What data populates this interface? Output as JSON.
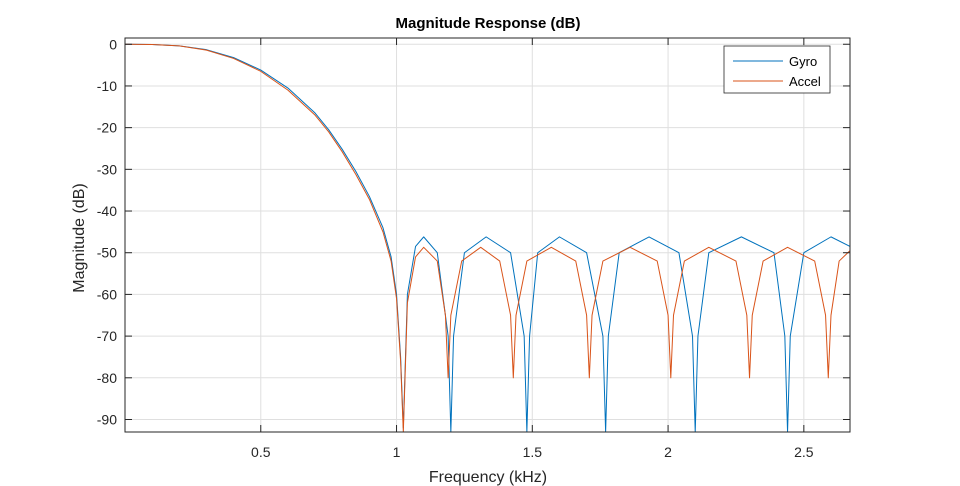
{
  "chart_data": {
    "type": "line",
    "title": "Magnitude Response (dB)",
    "xlabel": "Frequency (kHz)",
    "ylabel": "Magnitude (dB)",
    "xlim": [
      0,
      2.67
    ],
    "ylim": [
      -93,
      1.5
    ],
    "xticks": [
      0.5,
      1,
      1.5,
      2,
      2.5
    ],
    "xtick_labels": [
      "0.5",
      "1",
      "1.5",
      "2",
      "2.5"
    ],
    "yticks": [
      0,
      -10,
      -20,
      -30,
      -40,
      -50,
      -60,
      -70,
      -80,
      -90
    ],
    "ytick_labels": [
      "0",
      "-10",
      "-20",
      "-30",
      "-40",
      "-50",
      "-60",
      "-70",
      "-80",
      "-90"
    ],
    "grid": true,
    "legend_position": "top-right",
    "series": [
      {
        "name": "Gyro",
        "color": "#0072BD",
        "x": [
          0,
          0.1,
          0.2,
          0.3,
          0.4,
          0.5,
          0.6,
          0.7,
          0.75,
          0.8,
          0.85,
          0.9,
          0.95,
          0.98,
          1.0,
          1.015,
          1.025,
          1.04,
          1.07,
          1.1,
          1.15,
          1.19,
          1.2,
          1.21,
          1.25,
          1.33,
          1.42,
          1.47,
          1.48,
          1.49,
          1.52,
          1.6,
          1.7,
          1.76,
          1.77,
          1.78,
          1.82,
          1.93,
          2.04,
          2.09,
          2.1,
          2.11,
          2.15,
          2.27,
          2.39,
          2.43,
          2.44,
          2.45,
          2.5,
          2.6,
          2.67
        ],
        "y": [
          0,
          -0.05,
          -0.4,
          -1.3,
          -3.2,
          -6.2,
          -10.5,
          -16.5,
          -20.5,
          -25.2,
          -30.5,
          -36.5,
          -44,
          -51,
          -60,
          -75,
          -92,
          -60,
          -48.5,
          -46.2,
          -50,
          -70,
          -93,
          -70,
          -50,
          -46.2,
          -50,
          -70,
          -93,
          -70,
          -50,
          -46.2,
          -50,
          -70,
          -93,
          -70,
          -50,
          -46.2,
          -50,
          -70,
          -93,
          -70,
          -50,
          -46.2,
          -50,
          -70,
          -93,
          -70,
          -50,
          -46.2,
          -48.5
        ]
      },
      {
        "name": "Accel",
        "color": "#D95319",
        "x": [
          0,
          0.1,
          0.2,
          0.3,
          0.4,
          0.5,
          0.6,
          0.7,
          0.75,
          0.8,
          0.85,
          0.9,
          0.95,
          0.98,
          1.0,
          1.015,
          1.025,
          1.04,
          1.07,
          1.1,
          1.15,
          1.18,
          1.19,
          1.2,
          1.24,
          1.31,
          1.38,
          1.42,
          1.43,
          1.44,
          1.48,
          1.57,
          1.66,
          1.7,
          1.71,
          1.72,
          1.76,
          1.86,
          1.96,
          2.0,
          2.01,
          2.02,
          2.06,
          2.15,
          2.25,
          2.29,
          2.3,
          2.31,
          2.35,
          2.44,
          2.54,
          2.58,
          2.59,
          2.6,
          2.63,
          2.67
        ],
        "y": [
          0,
          -0.05,
          -0.4,
          -1.4,
          -3.4,
          -6.5,
          -11,
          -17,
          -21,
          -25.8,
          -31.2,
          -37.2,
          -45,
          -52,
          -61,
          -76,
          -93,
          -62,
          -51,
          -48.7,
          -52,
          -65,
          -80,
          -65,
          -52,
          -48.7,
          -52,
          -65,
          -80,
          -65,
          -52,
          -48.7,
          -52,
          -65,
          -80,
          -65,
          -52,
          -48.7,
          -52,
          -65,
          -80,
          -65,
          -52,
          -48.7,
          -52,
          -65,
          -80,
          -65,
          -52,
          -48.7,
          -52,
          -65,
          -80,
          -65,
          -52,
          -49.5
        ]
      }
    ]
  }
}
